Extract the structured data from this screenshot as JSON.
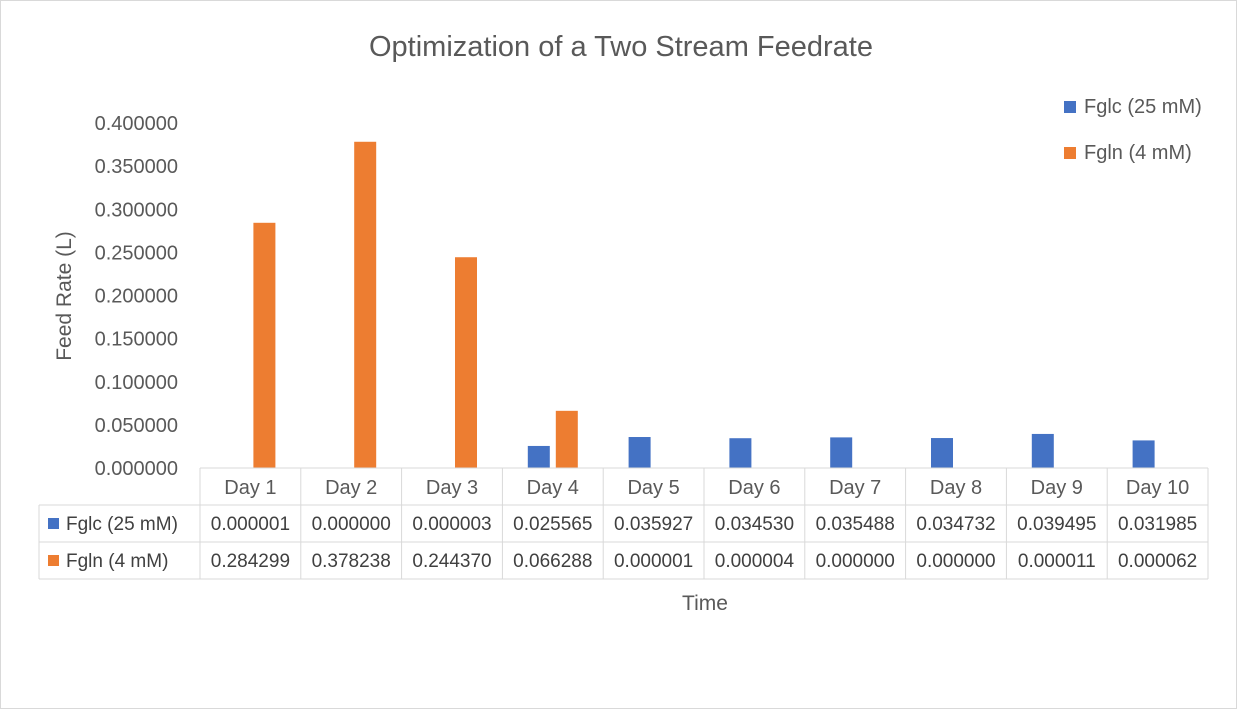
{
  "chart_data": {
    "type": "bar",
    "title": "Optimization of a Two Stream Feedrate",
    "xlabel": "Time",
    "ylabel": "Feed Rate (L)",
    "ylim": [
      0,
      0.4
    ],
    "ytick_step": 0.05,
    "ytick_labels": [
      "0.000000",
      "0.050000",
      "0.100000",
      "0.150000",
      "0.200000",
      "0.250000",
      "0.300000",
      "0.350000",
      "0.400000"
    ],
    "grid": false,
    "legend_position": "top-right",
    "data_table": true,
    "categories": [
      "Day 1",
      "Day 2",
      "Day 3",
      "Day 4",
      "Day 5",
      "Day 6",
      "Day 7",
      "Day 8",
      "Day 9",
      "Day 10"
    ],
    "series": [
      {
        "name": "Fglc (25 mM)",
        "color": "#4472c4",
        "values": [
          1e-06,
          0.0,
          3e-06,
          0.025565,
          0.035927,
          0.03453,
          0.035488,
          0.034732,
          0.039495,
          0.031985
        ],
        "labels": [
          "0.000001",
          "0.000000",
          "0.000003",
          "0.025565",
          "0.035927",
          "0.034530",
          "0.035488",
          "0.034732",
          "0.039495",
          "0.031985"
        ]
      },
      {
        "name": "Fgln (4 mM)",
        "color": "#ed7d31",
        "values": [
          0.284299,
          0.378238,
          0.24437,
          0.066288,
          1e-06,
          4e-06,
          0.0,
          0.0,
          1.1e-05,
          6.2e-05
        ],
        "labels": [
          "0.284299",
          "0.378238",
          "0.244370",
          "0.066288",
          "0.000001",
          "0.000004",
          "0.000000",
          "0.000000",
          "0.000011",
          "0.000062"
        ]
      }
    ]
  }
}
